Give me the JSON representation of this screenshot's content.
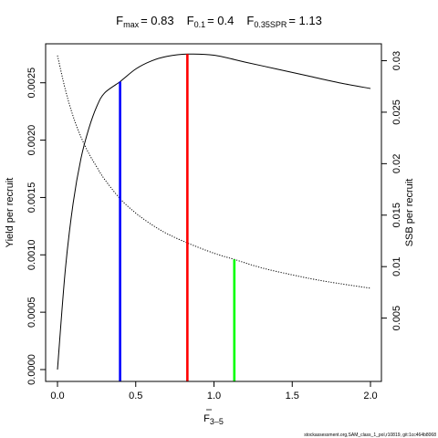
{
  "chart_data": {
    "type": "line",
    "title": {
      "fmax_label": "F",
      "fmax_sub": "max",
      "fmax_value": "= 0.83",
      "f01_label": "F",
      "f01_sub": "0.1",
      "f01_value": "= 0.4",
      "fspr_label": "F",
      "fspr_sub": "0.35SPR",
      "fspr_value": "= 1.13"
    },
    "xlabel": {
      "main": "F",
      "sub": "3–5"
    },
    "ylabel_left": "Yield per recruit",
    "ylabel_right": "SSB per recruit",
    "xlim": [
      0,
      2
    ],
    "ylim_left": [
      0,
      0.0028
    ],
    "ylim_right": [
      0,
      0.0312
    ],
    "x_ticks": [
      0,
      0.5,
      1,
      1.5,
      2
    ],
    "x_tick_labels": [
      "0.0",
      "0.5",
      "1.0",
      "1.5",
      "2.0"
    ],
    "y_left_ticks": [
      0,
      0.0005,
      0.001,
      0.0015,
      0.002,
      0.0025
    ],
    "y_left_tick_labels": [
      "0.0000",
      "0.0005",
      "0.0010",
      "0.0015",
      "0.0020",
      "0.0025"
    ],
    "y_right_ticks": [
      0.005,
      0.01,
      0.015,
      0.02,
      0.025,
      0.03
    ],
    "y_right_tick_labels": [
      "0.005",
      "0.01",
      "0.015",
      "0.02",
      "0.025",
      "0.03"
    ],
    "grid": false,
    "series": [
      {
        "axis": "left",
        "style": "solid",
        "color": "#000000",
        "x": [
          0,
          0.05,
          0.1,
          0.15,
          0.2,
          0.25,
          0.3,
          0.4,
          0.5,
          0.6,
          0.7,
          0.83,
          1.0,
          1.2,
          1.4,
          1.6,
          1.8,
          2.0
        ],
        "y": [
          0,
          0.00087,
          0.00145,
          0.00184,
          0.0021,
          0.00229,
          0.00241,
          0.00251,
          0.00262,
          0.00269,
          0.00273,
          0.00275,
          0.00274,
          0.00268,
          0.00262,
          0.00256,
          0.0025,
          0.00245
        ]
      },
      {
        "axis": "right",
        "style": "dotted",
        "color": "#000000",
        "x": [
          0,
          0.05,
          0.1,
          0.15,
          0.2,
          0.25,
          0.3,
          0.4,
          0.5,
          0.6,
          0.7,
          0.83,
          1.0,
          1.13,
          1.3,
          1.5,
          1.7,
          2.0
        ],
        "y": [
          0.0305,
          0.0272,
          0.0246,
          0.0226,
          0.021,
          0.0197,
          0.0185,
          0.0166,
          0.0152,
          0.0141,
          0.0132,
          0.0123,
          0.0113,
          0.0107,
          0.0099,
          0.0092,
          0.0086,
          0.0079
        ]
      }
    ],
    "reference_lines": [
      {
        "name": "F0.1",
        "x": 0.4,
        "y_top": 0.00251,
        "color": "#0000ff"
      },
      {
        "name": "Fmax",
        "x": 0.83,
        "y_top": 0.00275,
        "color": "#ff0000"
      },
      {
        "name": "F0.35SPR",
        "x": 1.13,
        "y_top": 0.00096,
        "color": "#00ff00"
      }
    ],
    "footer": "stockassessment.org,SAM_class_1_pol,r10819, git:1cc464b8068"
  }
}
